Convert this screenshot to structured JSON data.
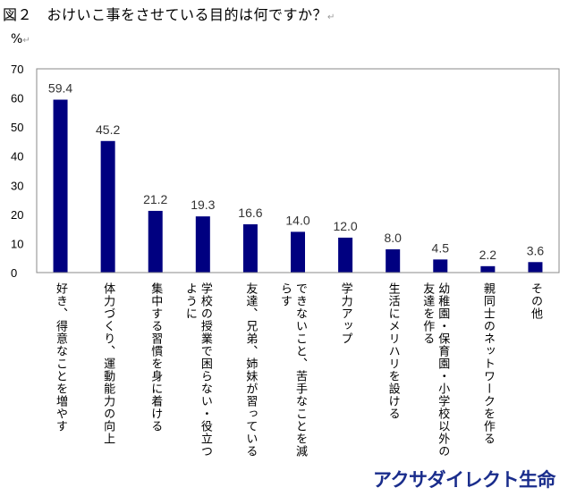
{
  "chart_data": {
    "type": "bar",
    "title": "図２　おけいこ事をさせている目的は何ですか？",
    "ylabel": "%",
    "xlabel": "",
    "ylim": [
      0,
      70
    ],
    "yticks": [
      0,
      10,
      20,
      30,
      40,
      50,
      60,
      70
    ],
    "grid": false,
    "bar_color": "#000080",
    "categories": [
      "好き、得意なことを増やす",
      "体力づくり、運動能力の向上",
      "集中する習慣を身に着ける",
      "学校の授業で困らない・役立つ\nように",
      "友達、兄弟、姉妹が習っている",
      "できないこと、苦手なことを減\nらす",
      "学力アップ",
      "生活にメリハリを設ける",
      "幼稚園・保育園・小学校以外の\n友達を作る",
      "親同士のネットワークを作る",
      "その他"
    ],
    "values": [
      59.4,
      45.2,
      21.2,
      19.3,
      16.6,
      14.0,
      12.0,
      8.0,
      4.5,
      2.2,
      3.6
    ],
    "value_labels": [
      "59.4",
      "45.2",
      "21.2",
      "19.3",
      "16.6",
      "14.0",
      "12.0",
      "8.0",
      "4.5",
      "2.2",
      "3.6"
    ]
  },
  "brand": "アクサダイレクト生命",
  "para_mark": "↵"
}
